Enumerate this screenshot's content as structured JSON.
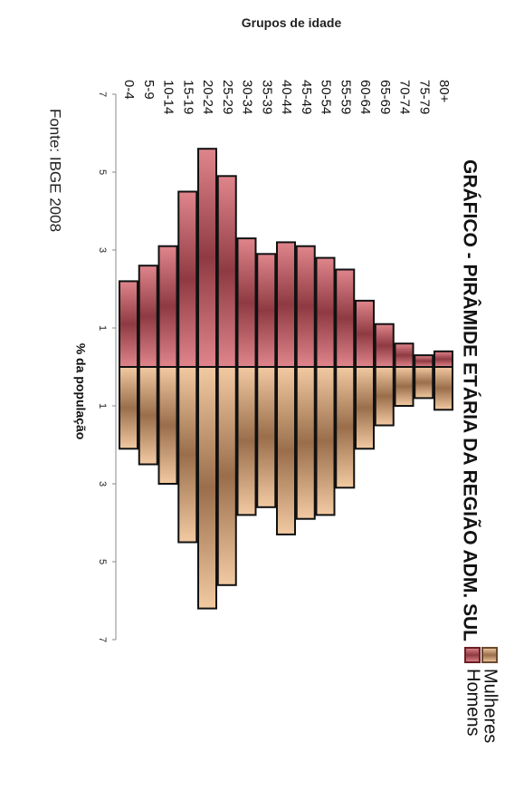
{
  "chart_data": {
    "type": "bar",
    "title": "GRÁFICO - PIRÂMIDE ETÁRIA DA REGIÃO ADM. SUL",
    "xlabel": "% da população",
    "ylabel": "Grupos de idade",
    "source": "Fonte: IBGE 2008",
    "categories": [
      "0-4",
      "5-9",
      "10-14",
      "15-19",
      "20-24",
      "25-29",
      "30-34",
      "35-39",
      "40-44",
      "45-49",
      "50-54",
      "55-59",
      "60-64",
      "65-69",
      "70-74",
      "75-79",
      "80+"
    ],
    "series": [
      {
        "name": "Homens",
        "color": "#c8535d",
        "values": [
          2.2,
          2.6,
          3.1,
          4.5,
          5.6,
          4.9,
          3.3,
          2.9,
          3.2,
          3.1,
          2.8,
          2.5,
          1.7,
          1.1,
          0.6,
          0.3,
          0.4
        ]
      },
      {
        "name": "Mulheres",
        "color": "#e3ab7d",
        "values": [
          2.1,
          2.5,
          3.0,
          4.5,
          6.2,
          5.6,
          3.8,
          3.6,
          4.3,
          3.9,
          3.8,
          3.1,
          2.1,
          1.5,
          1.0,
          0.8,
          1.1
        ]
      }
    ],
    "xticks": [
      "7",
      "5",
      "3",
      "1",
      "1",
      "3",
      "5",
      "7"
    ],
    "xlim": [
      -7,
      7
    ],
    "grid": false,
    "legend": "bottom"
  }
}
